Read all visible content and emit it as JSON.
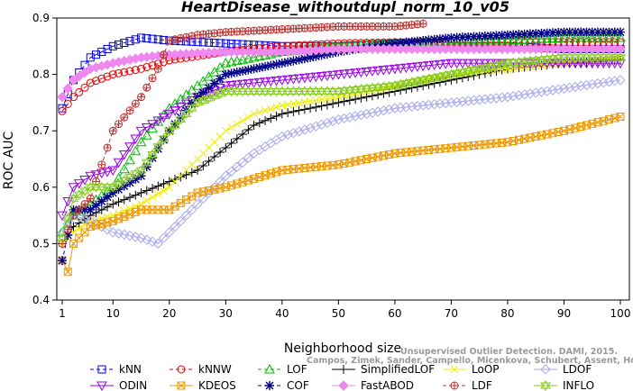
{
  "chart_data": {
    "type": "line",
    "title": "HeartDisease_withoutdupl_norm_10_v05",
    "xlabel": "Neighborhood size",
    "ylabel": "ROC AUC",
    "xlim": [
      0,
      100
    ],
    "ylim": [
      0.4,
      0.9
    ],
    "xticks": [
      1,
      10,
      20,
      30,
      40,
      50,
      60,
      70,
      80,
      90,
      100
    ],
    "yticks": [
      0.4,
      0.5,
      0.6,
      0.7,
      0.8,
      0.9
    ],
    "grid": false,
    "legend_position": "bottom",
    "watermark_line1": "Unsupervised Outlier Detection. DAMI, 2015.",
    "watermark_line2": "Campos, Zimek, Sander, Campello, Micenkova, Schubert, Assent, Houle",
    "series": [
      {
        "name": "kNN",
        "color": "#0000ee",
        "marker": "square",
        "dash": "4,3",
        "points": [
          [
            1,
            0.74
          ],
          [
            3,
            0.79
          ],
          [
            6,
            0.83
          ],
          [
            10,
            0.85
          ],
          [
            15,
            0.865
          ],
          [
            20,
            0.86
          ],
          [
            30,
            0.855
          ],
          [
            40,
            0.85
          ],
          [
            50,
            0.85
          ],
          [
            60,
            0.855
          ],
          [
            70,
            0.85
          ],
          [
            80,
            0.85
          ],
          [
            90,
            0.845
          ],
          [
            100,
            0.845
          ]
        ]
      },
      {
        "name": "kNNW",
        "color": "#ee0000",
        "marker": "circle",
        "dash": "4,3",
        "points": [
          [
            1,
            0.735
          ],
          [
            3,
            0.76
          ],
          [
            6,
            0.785
          ],
          [
            10,
            0.8
          ],
          [
            15,
            0.81
          ],
          [
            20,
            0.825
          ],
          [
            30,
            0.84
          ],
          [
            40,
            0.85
          ],
          [
            50,
            0.855
          ],
          [
            60,
            0.857
          ],
          [
            70,
            0.857
          ],
          [
            80,
            0.857
          ],
          [
            90,
            0.857
          ],
          [
            100,
            0.857
          ]
        ]
      },
      {
        "name": "LOF",
        "color": "#00bb00",
        "marker": "triangle-up",
        "dash": "4,3",
        "points": [
          [
            1,
            0.52
          ],
          [
            3,
            0.55
          ],
          [
            6,
            0.57
          ],
          [
            10,
            0.6
          ],
          [
            15,
            0.68
          ],
          [
            20,
            0.74
          ],
          [
            25,
            0.78
          ],
          [
            30,
            0.82
          ],
          [
            40,
            0.84
          ],
          [
            50,
            0.85
          ],
          [
            60,
            0.855
          ],
          [
            70,
            0.86
          ],
          [
            80,
            0.86
          ],
          [
            90,
            0.865
          ],
          [
            100,
            0.865
          ]
        ]
      },
      {
        "name": "SimplifiedLOF",
        "color": "#000000",
        "marker": "plus",
        "dash": "",
        "points": [
          [
            1,
            0.5
          ],
          [
            3,
            0.53
          ],
          [
            6,
            0.55
          ],
          [
            10,
            0.57
          ],
          [
            15,
            0.59
          ],
          [
            20,
            0.61
          ],
          [
            25,
            0.63
          ],
          [
            30,
            0.67
          ],
          [
            35,
            0.71
          ],
          [
            40,
            0.73
          ],
          [
            50,
            0.75
          ],
          [
            60,
            0.77
          ],
          [
            70,
            0.79
          ],
          [
            80,
            0.81
          ],
          [
            90,
            0.82
          ],
          [
            100,
            0.825
          ]
        ]
      },
      {
        "name": "LoOP",
        "color": "#eeee00",
        "marker": "x",
        "dash": "",
        "points": [
          [
            1,
            0.5
          ],
          [
            3,
            0.52
          ],
          [
            6,
            0.54
          ],
          [
            10,
            0.55
          ],
          [
            15,
            0.57
          ],
          [
            20,
            0.6
          ],
          [
            25,
            0.65
          ],
          [
            30,
            0.7
          ],
          [
            35,
            0.73
          ],
          [
            40,
            0.745
          ],
          [
            50,
            0.76
          ],
          [
            60,
            0.78
          ],
          [
            70,
            0.8
          ],
          [
            80,
            0.81
          ],
          [
            90,
            0.82
          ],
          [
            100,
            0.83
          ]
        ]
      },
      {
        "name": "LDOF",
        "color": "#aaaaee",
        "marker": "diamond",
        "dash": "",
        "points": [
          [
            1,
            0.52
          ],
          [
            3,
            0.55
          ],
          [
            6,
            0.54
          ],
          [
            10,
            0.52
          ],
          [
            15,
            0.51
          ],
          [
            18,
            0.5
          ],
          [
            20,
            0.52
          ],
          [
            25,
            0.57
          ],
          [
            30,
            0.62
          ],
          [
            35,
            0.66
          ],
          [
            40,
            0.69
          ],
          [
            50,
            0.72
          ],
          [
            60,
            0.74
          ],
          [
            70,
            0.75
          ],
          [
            80,
            0.76
          ],
          [
            90,
            0.775
          ],
          [
            100,
            0.79
          ]
        ]
      },
      {
        "name": "ODIN",
        "color": "#9900ee",
        "marker": "triangle-down",
        "dash": "",
        "points": [
          [
            1,
            0.55
          ],
          [
            3,
            0.6
          ],
          [
            6,
            0.62
          ],
          [
            10,
            0.63
          ],
          [
            15,
            0.7
          ],
          [
            20,
            0.73
          ],
          [
            25,
            0.76
          ],
          [
            30,
            0.78
          ],
          [
            40,
            0.79
          ],
          [
            50,
            0.8
          ],
          [
            60,
            0.81
          ],
          [
            70,
            0.82
          ],
          [
            80,
            0.82
          ],
          [
            90,
            0.82
          ],
          [
            100,
            0.82
          ]
        ]
      },
      {
        "name": "KDEOS",
        "color": "#ee9900",
        "marker": "square-x",
        "dash": "",
        "points": [
          [
            1,
            0.47
          ],
          [
            2,
            0.45
          ],
          [
            3,
            0.5
          ],
          [
            6,
            0.53
          ],
          [
            10,
            0.54
          ],
          [
            15,
            0.56
          ],
          [
            20,
            0.56
          ],
          [
            25,
            0.59
          ],
          [
            30,
            0.6
          ],
          [
            40,
            0.63
          ],
          [
            50,
            0.64
          ],
          [
            60,
            0.66
          ],
          [
            70,
            0.67
          ],
          [
            80,
            0.68
          ],
          [
            90,
            0.7
          ],
          [
            100,
            0.725
          ]
        ]
      },
      {
        "name": "COF",
        "color": "#000088",
        "marker": "asterisk",
        "dash": "4,3",
        "points": [
          [
            1,
            0.47
          ],
          [
            3,
            0.56
          ],
          [
            6,
            0.56
          ],
          [
            10,
            0.59
          ],
          [
            15,
            0.62
          ],
          [
            20,
            0.7
          ],
          [
            25,
            0.76
          ],
          [
            30,
            0.8
          ],
          [
            40,
            0.82
          ],
          [
            50,
            0.84
          ],
          [
            60,
            0.855
          ],
          [
            70,
            0.865
          ],
          [
            80,
            0.87
          ],
          [
            90,
            0.875
          ],
          [
            100,
            0.875
          ]
        ]
      },
      {
        "name": "FastABOD",
        "color": "#ee88ee",
        "marker": "diamond-filled",
        "dash": "",
        "points": [
          [
            1,
            0.76
          ],
          [
            3,
            0.79
          ],
          [
            6,
            0.81
          ],
          [
            10,
            0.82
          ],
          [
            15,
            0.83
          ],
          [
            20,
            0.835
          ],
          [
            30,
            0.84
          ],
          [
            40,
            0.84
          ],
          [
            50,
            0.845
          ],
          [
            60,
            0.845
          ],
          [
            70,
            0.845
          ],
          [
            80,
            0.845
          ],
          [
            90,
            0.845
          ],
          [
            100,
            0.845
          ]
        ]
      },
      {
        "name": "LDF",
        "color": "#bb3333",
        "marker": "circle-plus",
        "dash": "4,3",
        "points": [
          [
            1,
            0.5
          ],
          [
            3,
            0.55
          ],
          [
            6,
            0.58
          ],
          [
            10,
            0.7
          ],
          [
            15,
            0.76
          ],
          [
            18,
            0.81
          ],
          [
            20,
            0.86
          ],
          [
            25,
            0.87
          ],
          [
            30,
            0.875
          ],
          [
            40,
            0.88
          ],
          [
            50,
            0.885
          ],
          [
            60,
            0.885
          ],
          [
            65,
            0.89
          ]
        ]
      },
      {
        "name": "INFLO",
        "color": "#88cc22",
        "marker": "star-of-david",
        "dash": "",
        "points": [
          [
            1,
            0.51
          ],
          [
            3,
            0.58
          ],
          [
            6,
            0.6
          ],
          [
            10,
            0.6
          ],
          [
            15,
            0.63
          ],
          [
            20,
            0.7
          ],
          [
            25,
            0.75
          ],
          [
            30,
            0.77
          ],
          [
            40,
            0.77
          ],
          [
            50,
            0.77
          ],
          [
            60,
            0.78
          ],
          [
            70,
            0.8
          ],
          [
            80,
            0.82
          ],
          [
            90,
            0.83
          ],
          [
            100,
            0.83
          ]
        ]
      }
    ]
  }
}
